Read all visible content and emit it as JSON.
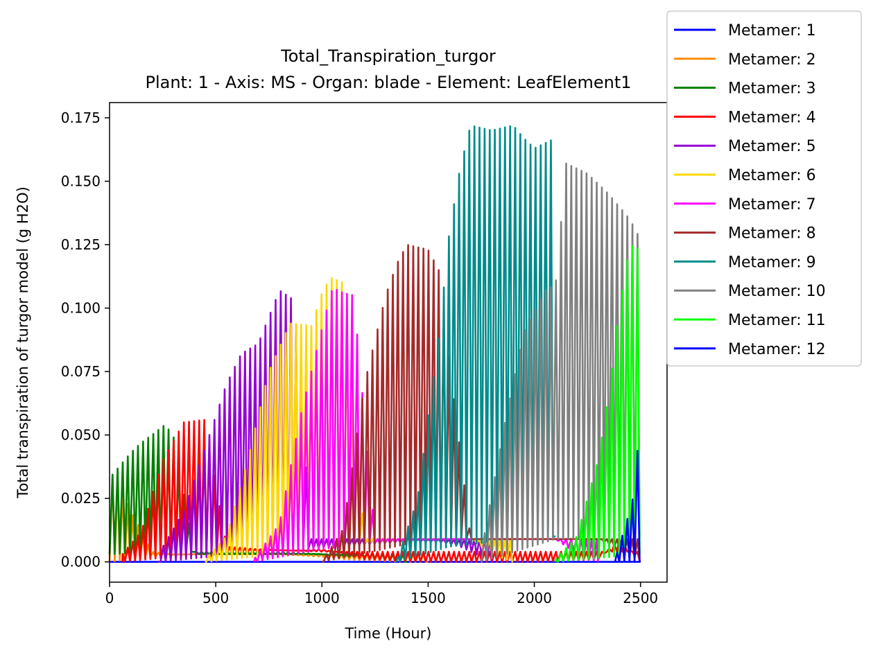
{
  "chart_data": {
    "type": "line",
    "title": "Total_Transpiration_turgor",
    "subtitle": "Plant: 1 - Axis: MS - Organ: blade - Element: LeafElement1",
    "xlabel": "Time (Hour)",
    "ylabel": "Total transpiration of turgor model (g H2O)",
    "xlim": [
      0,
      2625
    ],
    "ylim": [
      -0.008,
      0.181
    ],
    "xticks": [
      0,
      500,
      1000,
      1500,
      2000,
      2500
    ],
    "xtick_labels": [
      "0",
      "500",
      "1000",
      "1500",
      "2000",
      "2500"
    ],
    "yticks": [
      0.0,
      0.025,
      0.05,
      0.075,
      0.1,
      0.125,
      0.15,
      0.175
    ],
    "ytick_labels": [
      "0.000",
      "0.025",
      "0.050",
      "0.075",
      "0.100",
      "0.125",
      "0.150",
      "0.175"
    ],
    "grid": false,
    "legend_position": "outside-top-right",
    "period_hours": 24,
    "series": [
      {
        "name": "Metamer: 1",
        "color": "#0000ff",
        "start": 0,
        "end": 2500,
        "peaks_t": [
          0,
          100,
          300
        ],
        "peaks_v": [
          0.0,
          0.0,
          0.0
        ],
        "base_t": [
          0,
          2500
        ],
        "base_v": [
          0.0,
          0.0
        ]
      },
      {
        "name": "Metamer: 2",
        "color": "#ff8c00",
        "start": 0,
        "end": 1500,
        "peaks_t": [
          0,
          50,
          100,
          200,
          300
        ],
        "peaks_v": [
          0.036,
          0.03,
          0.02,
          0.004,
          0.003
        ],
        "base_t": [
          0,
          200,
          400,
          600,
          800,
          1000,
          1100,
          1400,
          1500
        ],
        "base_v": [
          0.0,
          0.002,
          0.003,
          0.003,
          0.003,
          0.002,
          0.001,
          0.0,
          0.0
        ]
      },
      {
        "name": "Metamer: 3",
        "color": "#008000",
        "start": 0,
        "end": 1400,
        "peaks_t": [
          0,
          50,
          100,
          150,
          200,
          260,
          300,
          400,
          500
        ],
        "peaks_v": [
          0.033,
          0.038,
          0.043,
          0.047,
          0.05,
          0.054,
          0.05,
          0.003,
          0.003
        ],
        "base_t": [
          0,
          200,
          500,
          800,
          1000,
          1100,
          1200,
          1300,
          1400
        ],
        "base_v": [
          0.003,
          0.004,
          0.004,
          0.004,
          0.003,
          0.002,
          0.002,
          0.001,
          0.0
        ]
      },
      {
        "name": "Metamer: 4",
        "color": "#ff0000",
        "start": 60,
        "end": 2500,
        "peaks_t": [
          60,
          150,
          250,
          350,
          450,
          550,
          700,
          1000
        ],
        "peaks_v": [
          0.003,
          0.012,
          0.04,
          0.055,
          0.056,
          0.006,
          0.005,
          0.004
        ],
        "base_t": [
          60,
          300,
          700,
          1000,
          1200,
          1500,
          1800,
          2000,
          2300,
          2400,
          2500
        ],
        "base_v": [
          0.0,
          0.002,
          0.004,
          0.005,
          0.001,
          0.0,
          0.0,
          0.0,
          0.001,
          0.009,
          0.0
        ]
      },
      {
        "name": "Metamer: 5",
        "color": "#9400d3",
        "start": 230,
        "end": 1800,
        "peaks_t": [
          230,
          350,
          450,
          550,
          620,
          700,
          800,
          870,
          950,
          1000,
          1100
        ],
        "peaks_v": [
          0.003,
          0.02,
          0.045,
          0.07,
          0.082,
          0.086,
          0.107,
          0.103,
          0.009,
          0.009,
          0.009
        ],
        "base_t": [
          230,
          600,
          900,
          1400,
          1550,
          1650,
          1750,
          1800
        ],
        "base_v": [
          0.0,
          0.003,
          0.005,
          0.008,
          0.008,
          0.006,
          0.002,
          0.0
        ]
      },
      {
        "name": "Metamer: 6",
        "color": "#ffd700",
        "start": 450,
        "end": 1900,
        "peaks_t": [
          450,
          550,
          650,
          750,
          850,
          950,
          1000,
          1040,
          1100,
          1200
        ],
        "peaks_v": [
          0.001,
          0.01,
          0.04,
          0.075,
          0.094,
          0.093,
          0.106,
          0.112,
          0.11,
          0.009
        ],
        "base_t": [
          450,
          800,
          1000,
          1500,
          1700,
          1800,
          1900
        ],
        "base_v": [
          0.0,
          0.003,
          0.006,
          0.009,
          0.009,
          0.003,
          0.0
        ]
      },
      {
        "name": "Metamer: 7",
        "color": "#ff00ff",
        "start": 680,
        "end": 2300,
        "peaks_t": [
          680,
          800,
          900,
          1000,
          1050,
          1100,
          1150,
          1250
        ],
        "peaks_v": [
          0.001,
          0.015,
          0.058,
          0.092,
          0.108,
          0.106,
          0.105,
          0.009
        ],
        "base_t": [
          680,
          1000,
          1300,
          1600,
          1900,
          2100,
          2200,
          2300
        ],
        "base_v": [
          0.0,
          0.005,
          0.008,
          0.009,
          0.009,
          0.009,
          0.003,
          0.0
        ]
      },
      {
        "name": "Metamer: 8",
        "color": "#a52a2a",
        "start": 1000,
        "end": 2500,
        "peaks_t": [
          1000,
          1100,
          1200,
          1300,
          1350,
          1400,
          1450,
          1500,
          1550,
          1700
        ],
        "peaks_v": [
          0.0,
          0.013,
          0.07,
          0.105,
          0.117,
          0.125,
          0.124,
          0.123,
          0.115,
          0.009
        ],
        "base_t": [
          1000,
          1400,
          1700,
          2000,
          2300,
          2400,
          2500
        ],
        "base_v": [
          0.0,
          0.007,
          0.009,
          0.009,
          0.009,
          0.005,
          0.0
        ]
      },
      {
        "name": "Metamer: 9",
        "color": "#008b8b",
        "start": 1350,
        "end": 2100,
        "peaks_t": [
          1350,
          1450,
          1550,
          1600,
          1650,
          1700,
          1800,
          1900,
          1950,
          2000,
          2100
        ],
        "peaks_v": [
          0.0,
          0.025,
          0.088,
          0.13,
          0.155,
          0.172,
          0.17,
          0.172,
          0.167,
          0.163,
          0.167
        ],
        "base_t": [
          1350,
          1600,
          2000,
          2100
        ],
        "base_v": [
          0.0,
          0.006,
          0.01,
          0.01
        ]
      },
      {
        "name": "Metamer: 10",
        "color": "#808080",
        "start": 1750,
        "end": 2500,
        "peaks_t": [
          1750,
          1850,
          1950,
          2050,
          2100,
          2150,
          2250,
          2350,
          2450,
          2500
        ],
        "peaks_v": [
          0.004,
          0.05,
          0.09,
          0.107,
          0.109,
          0.157,
          0.153,
          0.145,
          0.135,
          0.127
        ],
        "base_t": [
          1750,
          2100,
          2500
        ],
        "base_v": [
          0.0,
          0.009,
          0.01
        ]
      },
      {
        "name": "Metamer: 11",
        "color": "#00ff00",
        "start": 2100,
        "end": 2500,
        "peaks_t": [
          2100,
          2200,
          2300,
          2350,
          2400,
          2450,
          2500
        ],
        "peaks_v": [
          0.001,
          0.01,
          0.04,
          0.065,
          0.1,
          0.125,
          0.123
        ],
        "base_t": [
          2100,
          2500
        ],
        "base_v": [
          0.0,
          0.003
        ]
      },
      {
        "name": "Metamer: 12",
        "color": "#0000ff",
        "start": 2380,
        "end": 2500,
        "peaks_t": [
          2380,
          2420,
          2460,
          2500
        ],
        "peaks_v": [
          0.001,
          0.012,
          0.023,
          0.055
        ],
        "base_t": [
          2380,
          2500
        ],
        "base_v": [
          0.0,
          0.0
        ]
      }
    ]
  }
}
